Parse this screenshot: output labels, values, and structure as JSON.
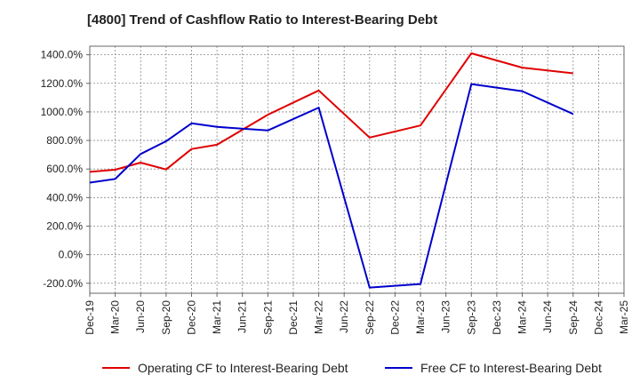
{
  "chart_data": {
    "type": "line",
    "title": "[4800]  Trend of Cashflow Ratio to Interest-Bearing Debt",
    "xlabel": "",
    "ylabel": "",
    "ylim": [
      -270,
      1460
    ],
    "yticks": [
      1400,
      1200,
      1000,
      800,
      600,
      400,
      200,
      0,
      -200
    ],
    "ytick_labels": [
      "1400.0%",
      "1200.0%",
      "1000.0%",
      "800.0%",
      "600.0%",
      "400.0%",
      "200.0%",
      "0.0%",
      "-200.0%"
    ],
    "categories": [
      "Dec-19",
      "Mar-20",
      "Jun-20",
      "Sep-20",
      "Dec-20",
      "Mar-21",
      "Jun-21",
      "Sep-21",
      "Dec-21",
      "Mar-22",
      "Jun-22",
      "Sep-22",
      "Dec-22",
      "Mar-23",
      "Jun-23",
      "Sep-23",
      "Dec-23",
      "Mar-24",
      "Jun-24",
      "Sep-24",
      "Dec-24",
      "Mar-25"
    ],
    "grid": true,
    "legend_position": "bottom",
    "series": [
      {
        "name": "Operating CF to Interest-Bearing Debt",
        "color": "#e00000",
        "values": [
          580,
          595,
          645,
          597,
          740,
          770,
          null,
          980,
          null,
          1150,
          null,
          820,
          null,
          905,
          null,
          1410,
          null,
          1310,
          null,
          1270,
          null,
          null
        ]
      },
      {
        "name": "Free CF to Interest-Bearing Debt",
        "color": "#0000cc",
        "values": [
          505,
          530,
          705,
          795,
          920,
          895,
          null,
          870,
          null,
          1030,
          null,
          -230,
          null,
          -205,
          null,
          1195,
          null,
          1145,
          null,
          985,
          null,
          null
        ]
      }
    ]
  }
}
